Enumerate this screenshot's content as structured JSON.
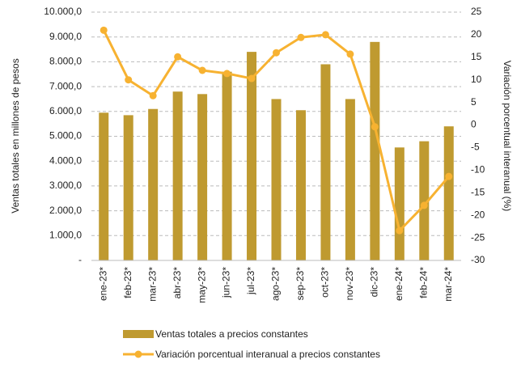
{
  "chart_data": {
    "type": "bar_line",
    "categories": [
      "ene-23*",
      "feb-23*",
      "mar-23*",
      "abr-23*",
      "may-23*",
      "jun-23*",
      "jul-23*",
      "ago-23*",
      "sep-23*",
      "oct-23*",
      "nov-23*",
      "dic-23*",
      "ene-24*",
      "feb-24*",
      "mar-24*"
    ],
    "series": [
      {
        "name": "Ventas totales a precios constantes",
        "color": "#bf9a30",
        "values": [
          5950,
          5850,
          6100,
          6800,
          6700,
          7600,
          8400,
          6500,
          6050,
          7900,
          6500,
          8800,
          4550,
          4800,
          5400
        ]
      },
      {
        "name": "Variación porcentual interanual a precios constantes",
        "color": "#f7b231",
        "axis": "y2",
        "values": [
          21,
          10,
          6.5,
          15.1,
          12.1,
          11.4,
          10.3,
          16,
          19.4,
          20,
          15.7,
          -0.4,
          -23.4,
          -17.8,
          -11.4
        ]
      }
    ],
    "ylabel": "Ventas totales en millones de pesos",
    "y2label": "Variación porcentual interanual (%)",
    "ylim": [
      0,
      10000
    ],
    "yticks": [
      {
        "value": 0,
        "label": "-"
      },
      {
        "value": 1000,
        "label": "1.000,0"
      },
      {
        "value": 2000,
        "label": "2.000,0"
      },
      {
        "value": 3000,
        "label": "3.000,0"
      },
      {
        "value": 4000,
        "label": "4.000,0"
      },
      {
        "value": 5000,
        "label": "5.000,0"
      },
      {
        "value": 6000,
        "label": "6.000,0"
      },
      {
        "value": 7000,
        "label": "7.000,0"
      },
      {
        "value": 8000,
        "label": "8.000,0"
      },
      {
        "value": 9000,
        "label": "9.000,0"
      },
      {
        "value": 10000,
        "label": "10.000,0"
      }
    ],
    "y2lim": [
      -30,
      25
    ],
    "y2ticks": [
      -30,
      -25,
      -20,
      -15,
      -10,
      -5,
      0,
      5,
      10,
      15,
      20,
      25
    ],
    "grid": true,
    "legend": "bottom"
  }
}
